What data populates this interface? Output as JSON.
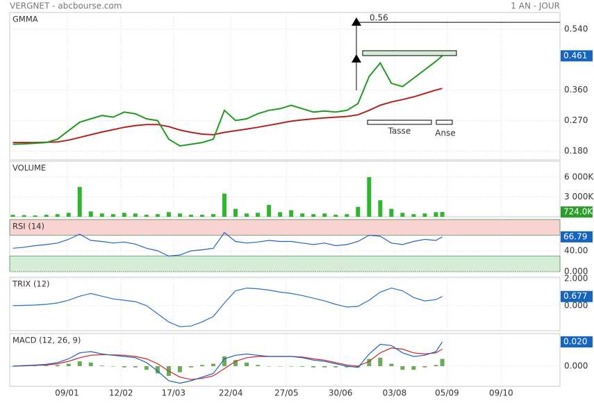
{
  "header": {
    "left": "VERGNET - abcbourse.com",
    "right": "1 AN - JOUR"
  },
  "chart_data": [
    {
      "type": "line",
      "title": "GMMA",
      "x": [
        -34,
        -27,
        -20,
        -13,
        -6,
        1,
        8,
        15,
        22,
        29,
        36,
        43,
        50,
        57,
        64,
        71,
        78,
        85,
        92,
        99,
        106,
        113,
        120,
        127,
        134,
        141,
        148,
        155,
        162,
        169,
        176,
        183,
        190,
        197,
        204,
        211,
        218,
        225,
        232,
        236
      ],
      "xlim": [
        -36,
        310
      ],
      "xticks": [
        {
          "value": 0,
          "label": "09/01"
        },
        {
          "value": 34,
          "label": "12/02"
        },
        {
          "value": 67,
          "label": "17/03"
        },
        {
          "value": 103,
          "label": "22/04"
        },
        {
          "value": 138,
          "label": "27/05"
        },
        {
          "value": 172,
          "label": "30/06"
        },
        {
          "value": 206,
          "label": "03/08"
        },
        {
          "value": 239,
          "label": "05/09"
        },
        {
          "value": 273,
          "label": "09/10"
        }
      ],
      "ylim": [
        0.154,
        0.589
      ],
      "yticks": [
        {
          "value": 0.54,
          "label": "0.540"
        },
        {
          "value": 0.36,
          "label": "0.360"
        },
        {
          "value": 0.27,
          "label": "0.270"
        },
        {
          "value": 0.18,
          "label": "0.180"
        }
      ],
      "series": [
        {
          "color": "#b22222",
          "values": [
            0.205,
            0.205,
            0.205,
            0.206,
            0.207,
            0.212,
            0.22,
            0.228,
            0.236,
            0.243,
            0.25,
            0.255,
            0.258,
            0.258,
            0.252,
            0.242,
            0.235,
            0.23,
            0.228,
            0.235,
            0.24,
            0.245,
            0.25,
            0.256,
            0.262,
            0.268,
            0.272,
            0.275,
            0.278,
            0.28,
            0.282,
            0.287,
            0.3,
            0.315,
            0.325,
            0.332,
            0.34,
            0.35,
            0.36,
            0.365
          ]
        },
        {
          "color": "#1e9a1e",
          "values": [
            0.2,
            0.201,
            0.203,
            0.205,
            0.215,
            0.24,
            0.265,
            0.275,
            0.285,
            0.28,
            0.295,
            0.29,
            0.275,
            0.27,
            0.215,
            0.195,
            0.2,
            0.205,
            0.215,
            0.3,
            0.27,
            0.275,
            0.29,
            0.3,
            0.305,
            0.315,
            0.305,
            0.295,
            0.298,
            0.295,
            0.3,
            0.32,
            0.4,
            0.44,
            0.38,
            0.37,
            0.395,
            0.42,
            0.445,
            0.461
          ]
        }
      ],
      "current": {
        "value": 0.461,
        "label": "0.461",
        "color": "#1565c0"
      },
      "annotations": [
        {
          "label": "0.56",
          "value": 0.56
        }
      ],
      "pattern_labels": [
        "Tasse",
        "Anse"
      ]
    },
    {
      "type": "bar",
      "title": "VOLUME",
      "color": "#2fb52f",
      "values": [
        300,
        250,
        200,
        300,
        400,
        600,
        4500,
        800,
        500,
        400,
        600,
        500,
        300,
        400,
        700,
        500,
        300,
        300,
        400,
        3500,
        1200,
        500,
        600,
        1800,
        700,
        1000,
        500,
        400,
        500,
        300,
        400,
        1500,
        6000,
        2500,
        1200,
        600,
        400,
        500,
        700,
        724
      ],
      "ylim": [
        0,
        8400
      ],
      "yticks": [
        {
          "value": 6000,
          "label": "6 000K"
        },
        {
          "value": 3000,
          "label": "3 000K"
        }
      ],
      "current": {
        "value": 724,
        "label": "724.0K",
        "color": "#2a9d2a"
      }
    },
    {
      "type": "line",
      "title": "RSI (14)",
      "series": [
        {
          "color": "#2b5fbf",
          "values": [
            45,
            47,
            50,
            52,
            55,
            62,
            72,
            60,
            58,
            55,
            57,
            53,
            45,
            40,
            30,
            32,
            40,
            42,
            45,
            75,
            58,
            55,
            57,
            60,
            58,
            58,
            55,
            52,
            55,
            50,
            52,
            58,
            70,
            68,
            55,
            52,
            58,
            62,
            60,
            66.79
          ]
        }
      ],
      "ylim": [
        0,
        100
      ],
      "yticks": [
        {
          "value": 40,
          "label": "40.00"
        },
        {
          "value": 0,
          "label": "0.000"
        }
      ],
      "bands": [
        {
          "from": 70,
          "to": 100,
          "color": "#f9d2d2"
        },
        {
          "from": 0,
          "to": 30,
          "color": "#d6ecd6"
        }
      ],
      "current": {
        "value": 66.79,
        "label": "66.79",
        "color": "#1565c0"
      }
    },
    {
      "type": "line",
      "title": "TRIX (12)",
      "series": [
        {
          "color": "#2b6cc4",
          "values": [
            0,
            0.02,
            0.05,
            0.1,
            0.2,
            0.4,
            0.7,
            0.9,
            0.7,
            0.5,
            0.4,
            0.3,
            0,
            -0.6,
            -1.2,
            -1.55,
            -1.5,
            -1.2,
            -0.8,
            0.2,
            1.1,
            1.3,
            1.25,
            1.15,
            1,
            0.9,
            0.75,
            0.55,
            0.35,
            0.1,
            -0.1,
            -0.05,
            0.4,
            1,
            1.3,
            1.1,
            0.6,
            0.35,
            0.45,
            0.677
          ]
        }
      ],
      "ylim": [
        -1.85,
        2.1
      ],
      "yticks": [
        {
          "value": 2,
          "label": "2.000"
        },
        {
          "value": 0,
          "label": "0.000"
        }
      ],
      "current": {
        "value": 0.677,
        "label": "0.677",
        "color": "#1565c0"
      }
    },
    {
      "type": "line",
      "title": "MACD (12, 26, 9)",
      "series": [
        {
          "type": "bar",
          "color": "#6aaa5a",
          "values": [
            0,
            0.0002,
            0.0003,
            0.0005,
            0.001,
            0.002,
            0.004,
            0.003,
            0.0005,
            -0.0003,
            -0.001,
            -0.001,
            -0.003,
            -0.006,
            -0.008,
            -0.005,
            -0.001,
            0.001,
            0.002,
            0.008,
            0.005,
            0.003,
            0.001,
            0,
            0,
            0,
            -0.0005,
            -0.001,
            -0.001,
            -0.001,
            -0.001,
            -0.001,
            0.006,
            0.007,
            0.002,
            -0.003,
            -0.003,
            -0.001,
            0.001,
            0.006
          ]
        },
        {
          "color": "#cc2222",
          "values": [
            0,
            0.0003,
            0.0007,
            0.001,
            0.002,
            0.004,
            0.007,
            0.009,
            0.0095,
            0.0093,
            0.009,
            0.008,
            0.006,
            0.002,
            -0.004,
            -0.009,
            -0.011,
            -0.01,
            -0.008,
            -0.002,
            0.004,
            0.007,
            0.008,
            0.008,
            0.008,
            0.008,
            0.0075,
            0.006,
            0.005,
            0.003,
            0.001,
            0,
            0.004,
            0.011,
            0.015,
            0.014,
            0.011,
            0.01,
            0.011,
            0.014
          ]
        },
        {
          "color": "#1f5fbf",
          "values": [
            0,
            0.0005,
            0.001,
            0.0015,
            0.003,
            0.006,
            0.011,
            0.012,
            0.01,
            0.009,
            0.008,
            0.007,
            0.003,
            -0.004,
            -0.012,
            -0.014,
            -0.012,
            -0.009,
            -0.006,
            0.006,
            0.009,
            0.01,
            0.009,
            0.008,
            0.008,
            0.008,
            0.007,
            0.005,
            0.004,
            0.002,
            0,
            -0.001,
            0.01,
            0.018,
            0.017,
            0.011,
            0.008,
            0.009,
            0.012,
            0.02
          ]
        }
      ],
      "ylim": [
        -0.0166,
        0.0269
      ],
      "yticks": [
        {
          "value": 0,
          "label": "0.000"
        }
      ],
      "current": {
        "value": 0.02,
        "label": "0.020",
        "color": "#1565c0"
      }
    }
  ]
}
